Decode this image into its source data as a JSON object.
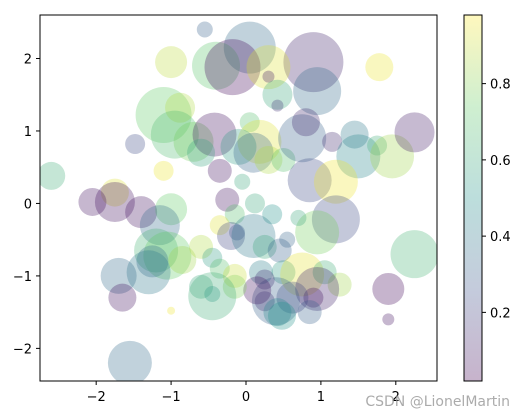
{
  "watermark": "CSDN @LionelMartin",
  "chart_data": {
    "type": "scatter",
    "title": "",
    "xlabel": "",
    "ylabel": "",
    "xlim": [
      -2.75,
      2.55
    ],
    "ylim": [
      -2.45,
      2.6
    ],
    "x_ticks": [
      -2,
      -1,
      0,
      1,
      2
    ],
    "y_ticks": [
      -2,
      -1,
      0,
      1,
      2
    ],
    "alpha": 0.3,
    "colormap": "viridis",
    "colorbar": {
      "range": [
        0.02,
        0.98
      ],
      "ticks": [
        0.2,
        0.4,
        0.6,
        0.8
      ]
    },
    "points": [
      {
        "x": 0.9,
        "y": 1.95,
        "c": 0.1,
        "s": 30
      },
      {
        "x": 0.05,
        "y": 2.15,
        "c": 0.35,
        "s": 26
      },
      {
        "x": -0.4,
        "y": 1.9,
        "c": 0.72,
        "s": 24
      },
      {
        "x": -0.18,
        "y": 1.88,
        "c": 0.02,
        "s": 28
      },
      {
        "x": 0.3,
        "y": 1.88,
        "c": 0.95,
        "s": 22
      },
      {
        "x": -1.0,
        "y": 1.95,
        "c": 0.9,
        "s": 16
      },
      {
        "x": -0.55,
        "y": 2.4,
        "c": 0.3,
        "s": 8
      },
      {
        "x": 1.78,
        "y": 1.88,
        "c": 0.97,
        "s": 14
      },
      {
        "x": 0.3,
        "y": 1.75,
        "c": 0.08,
        "s": 6
      },
      {
        "x": 0.95,
        "y": 1.55,
        "c": 0.35,
        "s": 24
      },
      {
        "x": 0.42,
        "y": 1.5,
        "c": 0.6,
        "s": 15
      },
      {
        "x": 0.42,
        "y": 1.35,
        "c": 0.15,
        "s": 6
      },
      {
        "x": -1.1,
        "y": 1.22,
        "c": 0.75,
        "s": 28
      },
      {
        "x": -0.88,
        "y": 1.32,
        "c": 0.88,
        "s": 15
      },
      {
        "x": -0.95,
        "y": 0.95,
        "c": 0.68,
        "s": 24
      },
      {
        "x": -0.7,
        "y": 0.85,
        "c": 0.78,
        "s": 20
      },
      {
        "x": -0.42,
        "y": 0.95,
        "c": 0.05,
        "s": 22
      },
      {
        "x": -0.6,
        "y": 0.7,
        "c": 0.58,
        "s": 14
      },
      {
        "x": 0.05,
        "y": 1.12,
        "c": 0.7,
        "s": 10
      },
      {
        "x": 0.18,
        "y": 0.85,
        "c": 0.95,
        "s": 22
      },
      {
        "x": -0.1,
        "y": 0.78,
        "c": 0.55,
        "s": 18
      },
      {
        "x": 0.1,
        "y": 0.7,
        "c": 0.32,
        "s": 20
      },
      {
        "x": 0.3,
        "y": 0.6,
        "c": 0.88,
        "s": 14
      },
      {
        "x": 0.5,
        "y": 0.6,
        "c": 0.7,
        "s": 12
      },
      {
        "x": 0.75,
        "y": 0.9,
        "c": 0.3,
        "s": 24
      },
      {
        "x": 0.8,
        "y": 1.12,
        "c": 0.12,
        "s": 14
      },
      {
        "x": 1.15,
        "y": 0.85,
        "c": 0.12,
        "s": 10
      },
      {
        "x": 1.45,
        "y": 0.95,
        "c": 0.4,
        "s": 14
      },
      {
        "x": 1.5,
        "y": 0.65,
        "c": 0.45,
        "s": 22
      },
      {
        "x": 1.75,
        "y": 0.8,
        "c": 0.62,
        "s": 10
      },
      {
        "x": 1.95,
        "y": 0.65,
        "c": 0.85,
        "s": 22
      },
      {
        "x": 2.25,
        "y": 0.98,
        "c": 0.08,
        "s": 20
      },
      {
        "x": -1.48,
        "y": 0.82,
        "c": 0.22,
        "s": 10
      },
      {
        "x": -2.6,
        "y": 0.38,
        "c": 0.62,
        "s": 14
      },
      {
        "x": -1.75,
        "y": 0.15,
        "c": 0.95,
        "s": 14
      },
      {
        "x": -1.75,
        "y": 0.02,
        "c": 0.05,
        "s": 20
      },
      {
        "x": -2.05,
        "y": 0.02,
        "c": 0.05,
        "s": 14
      },
      {
        "x": -1.4,
        "y": -0.12,
        "c": 0.05,
        "s": 16
      },
      {
        "x": -1.1,
        "y": 0.45,
        "c": 0.97,
        "s": 10
      },
      {
        "x": -1.0,
        "y": -0.08,
        "c": 0.75,
        "s": 16
      },
      {
        "x": -0.35,
        "y": 0.45,
        "c": 0.05,
        "s": 12
      },
      {
        "x": -0.25,
        "y": 0.05,
        "c": 0.05,
        "s": 12
      },
      {
        "x": -0.15,
        "y": -0.15,
        "c": 0.7,
        "s": 10
      },
      {
        "x": -0.35,
        "y": -0.3,
        "c": 0.95,
        "s": 10
      },
      {
        "x": -0.05,
        "y": 0.3,
        "c": 0.6,
        "s": 8
      },
      {
        "x": 0.12,
        "y": 0.0,
        "c": 0.6,
        "s": 10
      },
      {
        "x": 0.35,
        "y": -0.15,
        "c": 0.5,
        "s": 10
      },
      {
        "x": 0.85,
        "y": 0.32,
        "c": 0.22,
        "s": 22
      },
      {
        "x": 1.2,
        "y": 0.3,
        "c": 0.98,
        "s": 22
      },
      {
        "x": 1.2,
        "y": -0.22,
        "c": 0.22,
        "s": 24
      },
      {
        "x": 0.95,
        "y": -0.4,
        "c": 0.78,
        "s": 22
      },
      {
        "x": 0.7,
        "y": -0.2,
        "c": 0.6,
        "s": 8
      },
      {
        "x": 0.55,
        "y": -0.5,
        "c": 0.32,
        "s": 8
      },
      {
        "x": -1.15,
        "y": -0.3,
        "c": 0.35,
        "s": 20
      },
      {
        "x": -1.2,
        "y": -0.65,
        "c": 0.65,
        "s": 22
      },
      {
        "x": -1.05,
        "y": -0.72,
        "c": 0.75,
        "s": 24
      },
      {
        "x": -1.25,
        "y": -0.8,
        "c": 0.35,
        "s": 16
      },
      {
        "x": -0.85,
        "y": -0.78,
        "c": 0.85,
        "s": 14
      },
      {
        "x": -0.6,
        "y": -0.6,
        "c": 0.88,
        "s": 12
      },
      {
        "x": -0.45,
        "y": -0.75,
        "c": 0.55,
        "s": 10
      },
      {
        "x": -0.2,
        "y": -0.45,
        "c": 0.2,
        "s": 14
      },
      {
        "x": -0.12,
        "y": -0.4,
        "c": 0.25,
        "s": 8
      },
      {
        "x": 0.1,
        "y": -0.45,
        "c": 0.4,
        "s": 22
      },
      {
        "x": 0.25,
        "y": -0.6,
        "c": 0.6,
        "s": 12
      },
      {
        "x": 0.45,
        "y": -0.65,
        "c": 0.3,
        "s": 12
      },
      {
        "x": -0.35,
        "y": -0.9,
        "c": 0.7,
        "s": 10
      },
      {
        "x": -0.15,
        "y": -1.0,
        "c": 0.92,
        "s": 12
      },
      {
        "x": 0.2,
        "y": -0.95,
        "c": 0.42,
        "s": 12
      },
      {
        "x": 0.5,
        "y": -0.95,
        "c": 0.55,
        "s": 12
      },
      {
        "x": 0.75,
        "y": -0.98,
        "c": 0.96,
        "s": 22
      },
      {
        "x": 1.05,
        "y": -0.95,
        "c": 0.62,
        "s": 12
      },
      {
        "x": 1.25,
        "y": -1.12,
        "c": 0.85,
        "s": 12
      },
      {
        "x": 0.95,
        "y": -1.18,
        "c": 0.1,
        "s": 22
      },
      {
        "x": 0.9,
        "y": -1.3,
        "c": 0.05,
        "s": 10
      },
      {
        "x": 0.85,
        "y": -1.5,
        "c": 0.3,
        "s": 12
      },
      {
        "x": 0.62,
        "y": -1.3,
        "c": 0.2,
        "s": 16
      },
      {
        "x": 0.4,
        "y": -1.35,
        "c": 0.3,
        "s": 24
      },
      {
        "x": 0.25,
        "y": -1.05,
        "c": 0.15,
        "s": 10
      },
      {
        "x": 0.15,
        "y": -1.2,
        "c": 0.05,
        "s": 14
      },
      {
        "x": 0.25,
        "y": -1.35,
        "c": 0.15,
        "s": 10
      },
      {
        "x": 0.42,
        "y": -1.5,
        "c": 0.45,
        "s": 14
      },
      {
        "x": 0.48,
        "y": -1.55,
        "c": 0.5,
        "s": 14
      },
      {
        "x": -0.15,
        "y": -1.15,
        "c": 0.8,
        "s": 12
      },
      {
        "x": -0.6,
        "y": -1.15,
        "c": 0.6,
        "s": 12
      },
      {
        "x": -0.45,
        "y": -1.25,
        "c": 0.5,
        "s": 8
      },
      {
        "x": -0.45,
        "y": -1.28,
        "c": 0.62,
        "s": 24
      },
      {
        "x": -1.3,
        "y": -0.95,
        "c": 0.4,
        "s": 22
      },
      {
        "x": -1.7,
        "y": -1.0,
        "c": 0.35,
        "s": 18
      },
      {
        "x": -1.65,
        "y": -1.3,
        "c": 0.05,
        "s": 14
      },
      {
        "x": -1.0,
        "y": -1.48,
        "c": 0.98,
        "s": 4
      },
      {
        "x": 1.9,
        "y": -1.18,
        "c": 0.02,
        "s": 16
      },
      {
        "x": 1.9,
        "y": -1.6,
        "c": 0.05,
        "s": 6
      },
      {
        "x": 2.25,
        "y": -0.7,
        "c": 0.65,
        "s": 24
      },
      {
        "x": -1.55,
        "y": -2.2,
        "c": 0.35,
        "s": 22
      }
    ]
  }
}
